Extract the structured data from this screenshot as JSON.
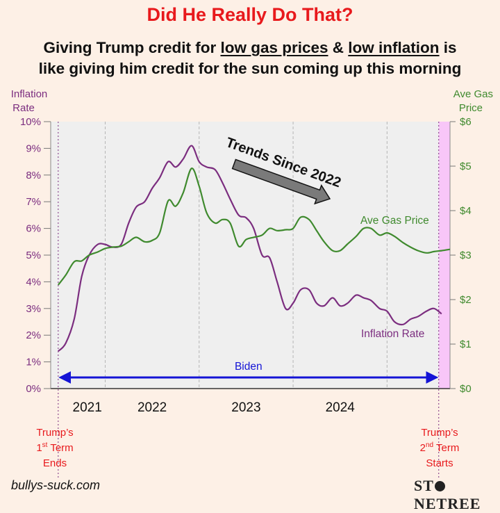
{
  "header": {
    "headline": "Did He Really Do That?",
    "line1_pre": "Giving Trump credit for ",
    "line1_u1": "low gas prices",
    "line1_mid": " & ",
    "line1_u2": "low inflation",
    "line1_post": " is",
    "line2": "like giving him credit for the sun coming up this morning"
  },
  "footer": {
    "site": "bullys-suck.com",
    "logo_pre": "ST",
    "logo_post": "NETREE"
  },
  "chart_data": {
    "type": "line",
    "left_axis": {
      "title_line1": "Inflation",
      "title_line2": "Rate",
      "ylim": [
        0,
        10
      ],
      "ticks": [
        "0%",
        "1%",
        "2%",
        "3%",
        "4%",
        "5%",
        "6%",
        "7%",
        "8%",
        "9%",
        "10%"
      ]
    },
    "right_axis": {
      "title_line1": "Ave Gas",
      "title_line2": "Price",
      "ylim": [
        0,
        6
      ],
      "ticks": [
        "$0",
        "$1",
        "$2",
        "$3",
        "$4",
        "$5",
        "$6"
      ]
    },
    "x_range": [
      2020.92,
      2025.17
    ],
    "year_labels": [
      "2021",
      "2022",
      "2023",
      "2024"
    ],
    "grid": "vertical-dashed",
    "series": [
      {
        "name": "Inflation Rate",
        "axis": "left",
        "color": "#7b2d7f",
        "points": [
          [
            2021.0,
            1.4
          ],
          [
            2021.08,
            1.7
          ],
          [
            2021.17,
            2.6
          ],
          [
            2021.25,
            4.2
          ],
          [
            2021.33,
            5.0
          ],
          [
            2021.42,
            5.4
          ],
          [
            2021.5,
            5.4
          ],
          [
            2021.58,
            5.3
          ],
          [
            2021.67,
            5.4
          ],
          [
            2021.75,
            6.2
          ],
          [
            2021.83,
            6.8
          ],
          [
            2021.92,
            7.0
          ],
          [
            2022.0,
            7.5
          ],
          [
            2022.08,
            7.9
          ],
          [
            2022.17,
            8.5
          ],
          [
            2022.25,
            8.3
          ],
          [
            2022.33,
            8.6
          ],
          [
            2022.42,
            9.1
          ],
          [
            2022.5,
            8.5
          ],
          [
            2022.58,
            8.3
          ],
          [
            2022.67,
            8.2
          ],
          [
            2022.75,
            7.7
          ],
          [
            2022.83,
            7.1
          ],
          [
            2022.92,
            6.5
          ],
          [
            2023.0,
            6.4
          ],
          [
            2023.08,
            6.0
          ],
          [
            2023.17,
            5.0
          ],
          [
            2023.25,
            4.9
          ],
          [
            2023.33,
            4.0
          ],
          [
            2023.42,
            3.0
          ],
          [
            2023.5,
            3.2
          ],
          [
            2023.58,
            3.7
          ],
          [
            2023.67,
            3.7
          ],
          [
            2023.75,
            3.2
          ],
          [
            2023.83,
            3.1
          ],
          [
            2023.92,
            3.4
          ],
          [
            2024.0,
            3.1
          ],
          [
            2024.08,
            3.2
          ],
          [
            2024.17,
            3.5
          ],
          [
            2024.25,
            3.4
          ],
          [
            2024.33,
            3.3
          ],
          [
            2024.42,
            3.0
          ],
          [
            2024.5,
            2.9
          ],
          [
            2024.58,
            2.5
          ],
          [
            2024.67,
            2.4
          ],
          [
            2024.75,
            2.6
          ],
          [
            2024.83,
            2.7
          ],
          [
            2024.92,
            2.9
          ],
          [
            2025.0,
            3.0
          ],
          [
            2025.08,
            2.8
          ]
        ]
      },
      {
        "name": "Ave Gas Price",
        "axis": "right",
        "color": "#3f8a2e",
        "points": [
          [
            2021.0,
            2.33
          ],
          [
            2021.08,
            2.55
          ],
          [
            2021.17,
            2.85
          ],
          [
            2021.25,
            2.87
          ],
          [
            2021.33,
            3.0
          ],
          [
            2021.42,
            3.07
          ],
          [
            2021.5,
            3.15
          ],
          [
            2021.58,
            3.18
          ],
          [
            2021.67,
            3.2
          ],
          [
            2021.75,
            3.3
          ],
          [
            2021.83,
            3.4
          ],
          [
            2021.92,
            3.3
          ],
          [
            2022.0,
            3.33
          ],
          [
            2022.08,
            3.5
          ],
          [
            2022.17,
            4.22
          ],
          [
            2022.25,
            4.1
          ],
          [
            2022.33,
            4.4
          ],
          [
            2022.42,
            4.95
          ],
          [
            2022.5,
            4.55
          ],
          [
            2022.58,
            3.95
          ],
          [
            2022.67,
            3.72
          ],
          [
            2022.75,
            3.8
          ],
          [
            2022.83,
            3.72
          ],
          [
            2022.92,
            3.2
          ],
          [
            2023.0,
            3.35
          ],
          [
            2023.08,
            3.4
          ],
          [
            2023.17,
            3.45
          ],
          [
            2023.25,
            3.6
          ],
          [
            2023.33,
            3.55
          ],
          [
            2023.42,
            3.57
          ],
          [
            2023.5,
            3.6
          ],
          [
            2023.58,
            3.85
          ],
          [
            2023.67,
            3.8
          ],
          [
            2023.75,
            3.55
          ],
          [
            2023.83,
            3.3
          ],
          [
            2023.92,
            3.1
          ],
          [
            2024.0,
            3.1
          ],
          [
            2024.08,
            3.25
          ],
          [
            2024.17,
            3.42
          ],
          [
            2024.25,
            3.6
          ],
          [
            2024.33,
            3.6
          ],
          [
            2024.42,
            3.45
          ],
          [
            2024.5,
            3.5
          ],
          [
            2024.58,
            3.42
          ],
          [
            2024.67,
            3.28
          ],
          [
            2024.75,
            3.18
          ],
          [
            2024.83,
            3.1
          ],
          [
            2024.92,
            3.05
          ],
          [
            2025.0,
            3.08
          ],
          [
            2025.08,
            3.1
          ],
          [
            2025.17,
            3.13
          ]
        ]
      }
    ],
    "annotations": {
      "trend_text": "Trends Since 2022",
      "gas_label": "Ave Gas Price",
      "inflation_label": "Inflation Rate",
      "biden_label": "Biden",
      "term1_line1": "Trump’s",
      "term1_line2_num": "1",
      "term1_line2_sup": "st",
      "term1_line2_rest": " Term",
      "term1_line3": "Ends",
      "term2_line1": "Trump’s",
      "term2_line2_num": "2",
      "term2_line2_sup": "nd",
      "term2_line2_rest": " Term",
      "term2_line3": "Starts"
    },
    "colors": {
      "plot_bg": "#efefef",
      "trump_band": "#f8c6f8",
      "inflation_axis": "#7b2d7f",
      "gas_axis": "#3f8a2e",
      "biden_arrow": "#1414d6",
      "term_labels": "#e8191c",
      "trend_arrow": "#7a7a7a"
    }
  }
}
